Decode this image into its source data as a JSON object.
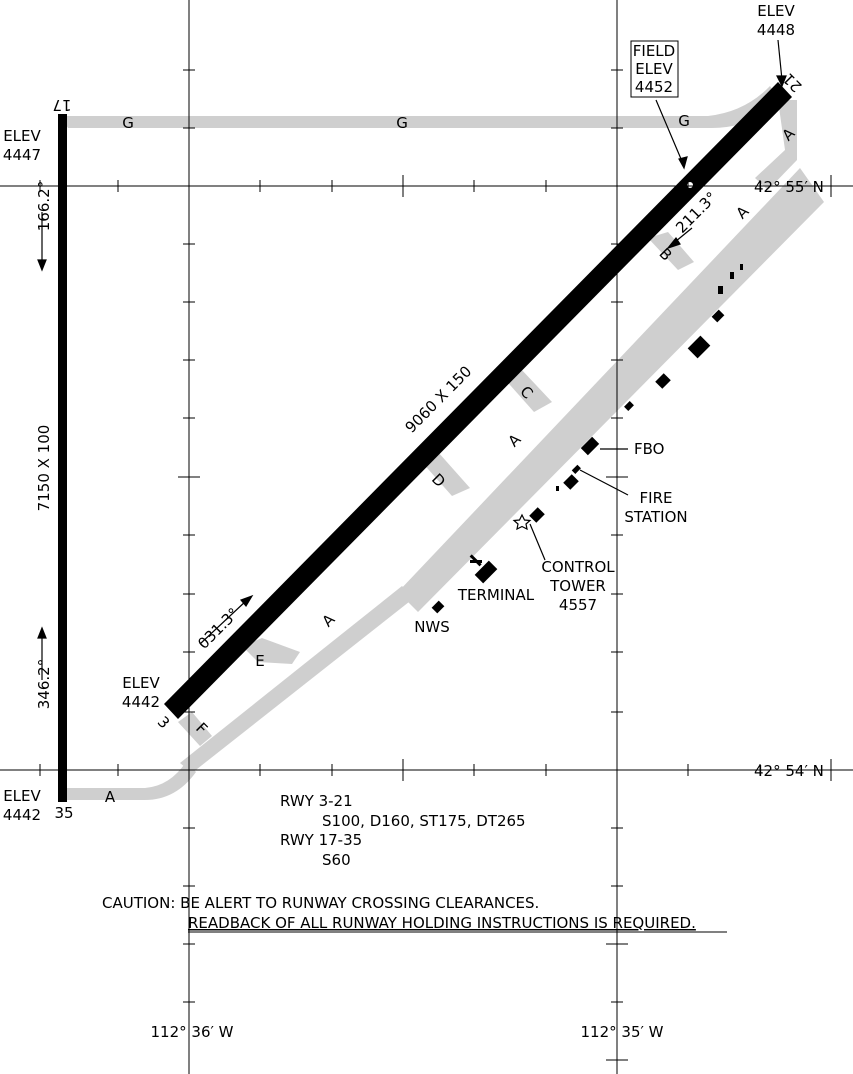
{
  "runways": {
    "rwy_3_21": {
      "dimensions": "9060 X 150",
      "end_3": "3",
      "end_21": "21",
      "heading_3": "031.3°",
      "heading_21": "211.3°"
    },
    "rwy_17_35": {
      "dimensions": "7150 X 100",
      "end_17": "17",
      "end_35": "35",
      "heading_17": "166.2°",
      "heading_35": "346.2°"
    }
  },
  "elevations": {
    "elev_21": {
      "label": "ELEV",
      "value": "4448"
    },
    "elev_17": {
      "label": "ELEV",
      "value": "4447"
    },
    "elev_3": {
      "label": "ELEV",
      "value": "4442"
    },
    "elev_35": {
      "label": "ELEV",
      "value": "4442"
    },
    "field": {
      "line1": "FIELD",
      "line2": "ELEV",
      "value": "4452"
    }
  },
  "taxiways": {
    "g": "G",
    "a": "A",
    "b": "B",
    "c": "C",
    "d": "D",
    "e": "E",
    "f": "F"
  },
  "facilities": {
    "fbo": "FBO",
    "fire_station": [
      "FIRE",
      "STATION"
    ],
    "control_tower": [
      "CONTROL",
      "TOWER",
      "4557"
    ],
    "terminal": "TERMINAL",
    "nws": "NWS"
  },
  "coordinates": {
    "lat_north": "42° 55′ N",
    "lat_south": "42° 54′ N",
    "lon_west": "112° 36′ W",
    "lon_east": "112° 35′ W"
  },
  "strength": {
    "rwy_3_21_label": "RWY 3-21",
    "rwy_3_21_values": "S100, D160, ST175, DT265",
    "rwy_17_35_label": "RWY 17-35",
    "rwy_17_35_values": "S60"
  },
  "caution": {
    "line1": "CAUTION: BE ALERT TO RUNWAY CROSSING CLEARANCES.",
    "line2": "READBACK OF ALL RUNWAY HOLDING INSTRUCTIONS IS REQUIRED."
  },
  "colors": {
    "pavement": "#cfcfcf",
    "runway": "#000000",
    "background": "#ffffff"
  }
}
